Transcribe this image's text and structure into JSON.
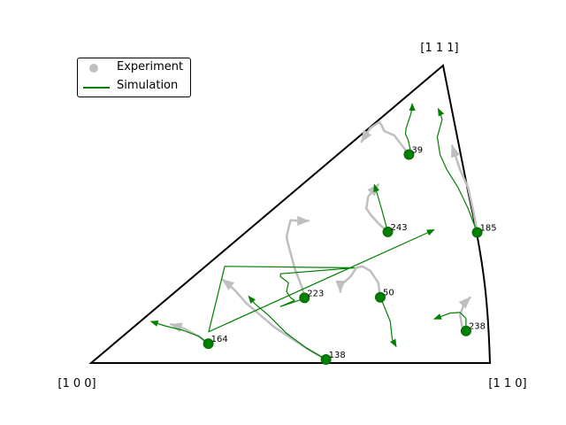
{
  "chart_data": {
    "type": "scatter",
    "title": "",
    "legend": {
      "placement": "upper-left",
      "entries": [
        "Experiment",
        "Simulation"
      ]
    },
    "corner_labels": {
      "bottom_left": "[1 0 0]",
      "bottom_right": "[1 1 0]",
      "top": "[1 1 1]"
    },
    "colors": {
      "experiment": "#bfbfbf",
      "simulation": "#008000",
      "outline": "#000000"
    },
    "grains": [
      {
        "id": "39",
        "start": [
          0.797,
          0.701
        ],
        "experiment": [
          [
            0.797,
            0.701
          ],
          [
            0.76,
            0.765
          ],
          [
            0.735,
            0.78
          ],
          [
            0.728,
            0.8
          ],
          [
            0.722,
            0.81
          ],
          [
            0.7,
            0.79
          ],
          [
            0.678,
            0.744
          ]
        ],
        "simulation": [
          [
            0.797,
            0.701
          ],
          [
            0.8,
            0.72
          ],
          [
            0.795,
            0.75
          ],
          [
            0.788,
            0.77
          ],
          [
            0.79,
            0.79
          ],
          [
            0.8,
            0.83
          ],
          [
            0.805,
            0.855
          ],
          [
            0.805,
            0.872
          ]
        ]
      },
      {
        "id": "185",
        "start": [
          0.968,
          0.439
        ],
        "experiment": [
          [
            0.968,
            0.439
          ],
          [
            0.96,
            0.5
          ],
          [
            0.945,
            0.59
          ],
          [
            0.925,
            0.65
          ],
          [
            0.915,
            0.69
          ],
          [
            0.905,
            0.73
          ]
        ],
        "simulation": [
          [
            0.968,
            0.439
          ],
          [
            0.945,
            0.52
          ],
          [
            0.92,
            0.59
          ],
          [
            0.892,
            0.65
          ],
          [
            0.875,
            0.7
          ],
          [
            0.868,
            0.76
          ],
          [
            0.88,
            0.818
          ],
          [
            0.875,
            0.842
          ],
          [
            0.87,
            0.855
          ]
        ]
      },
      {
        "id": "243",
        "start": [
          0.744,
          0.441
        ],
        "experiment": [
          [
            0.744,
            0.441
          ],
          [
            0.72,
            0.47
          ],
          [
            0.7,
            0.5
          ],
          [
            0.69,
            0.52
          ],
          [
            0.695,
            0.56
          ],
          [
            0.72,
            0.6
          ]
        ],
        "simulation": [
          [
            0.744,
            0.441
          ],
          [
            0.73,
            0.51
          ],
          [
            0.717,
            0.57
          ],
          [
            0.71,
            0.6
          ]
        ]
      },
      {
        "id": "223",
        "start": [
          0.535,
          0.219
        ],
        "experiment": [
          [
            0.535,
            0.219
          ],
          [
            0.53,
            0.25
          ],
          [
            0.51,
            0.32
          ],
          [
            0.492,
            0.41
          ],
          [
            0.49,
            0.425
          ],
          [
            0.5,
            0.48
          ],
          [
            0.52,
            0.478
          ],
          [
            0.545,
            0.478
          ]
        ],
        "simulation": [
          [
            0.535,
            0.219
          ],
          [
            0.52,
            0.21
          ],
          [
            0.475,
            0.19
          ],
          [
            0.51,
            0.21
          ],
          [
            0.5,
            0.22
          ],
          [
            0.49,
            0.24
          ],
          [
            0.495,
            0.27
          ],
          [
            0.475,
            0.29
          ],
          [
            0.475,
            0.3
          ],
          [
            0.66,
            0.32
          ],
          [
            0.335,
            0.325
          ],
          [
            0.295,
            0.105
          ],
          [
            0.86,
            0.448
          ]
        ]
      },
      {
        "id": "50",
        "start": [
          0.725,
          0.221
        ],
        "experiment": [
          [
            0.725,
            0.221
          ],
          [
            0.72,
            0.27
          ],
          [
            0.7,
            0.31
          ],
          [
            0.68,
            0.325
          ],
          [
            0.665,
            0.32
          ],
          [
            0.65,
            0.29
          ],
          [
            0.625,
            0.26
          ],
          [
            0.625,
            0.24
          ]
        ],
        "simulation": [
          [
            0.725,
            0.221
          ],
          [
            0.735,
            0.19
          ],
          [
            0.75,
            0.14
          ],
          [
            0.755,
            0.08
          ],
          [
            0.765,
            0.055
          ]
        ]
      },
      {
        "id": "238",
        "start": [
          0.94,
          0.108
        ],
        "experiment": [
          [
            0.94,
            0.108
          ],
          [
            0.93,
            0.125
          ],
          [
            0.925,
            0.16
          ],
          [
            0.935,
            0.2
          ],
          [
            0.95,
            0.22
          ]
        ],
        "simulation": [
          [
            0.94,
            0.108
          ],
          [
            0.94,
            0.15
          ],
          [
            0.925,
            0.17
          ],
          [
            0.9,
            0.168
          ],
          [
            0.88,
            0.158
          ],
          [
            0.86,
            0.148
          ]
        ]
      },
      {
        "id": "164",
        "start": [
          0.294,
          0.065
        ],
        "experiment": [
          [
            0.294,
            0.065
          ],
          [
            0.27,
            0.09
          ],
          [
            0.235,
            0.115
          ],
          [
            0.22,
            0.122
          ],
          [
            0.2,
            0.13
          ]
        ],
        "simulation": [
          [
            0.294,
            0.065
          ],
          [
            0.27,
            0.09
          ],
          [
            0.23,
            0.11
          ],
          [
            0.185,
            0.125
          ],
          [
            0.15,
            0.14
          ]
        ]
      },
      {
        "id": "138",
        "start": [
          0.589,
          0.012
        ],
        "experiment": [
          [
            0.589,
            0.012
          ],
          [
            0.54,
            0.05
          ],
          [
            0.46,
            0.12
          ],
          [
            0.39,
            0.2
          ],
          [
            0.36,
            0.245
          ],
          [
            0.34,
            0.27
          ],
          [
            0.33,
            0.28
          ]
        ],
        "simulation": [
          [
            0.589,
            0.012
          ],
          [
            0.54,
            0.05
          ],
          [
            0.49,
            0.1
          ],
          [
            0.445,
            0.16
          ],
          [
            0.41,
            0.2
          ],
          [
            0.395,
            0.225
          ]
        ]
      }
    ]
  }
}
